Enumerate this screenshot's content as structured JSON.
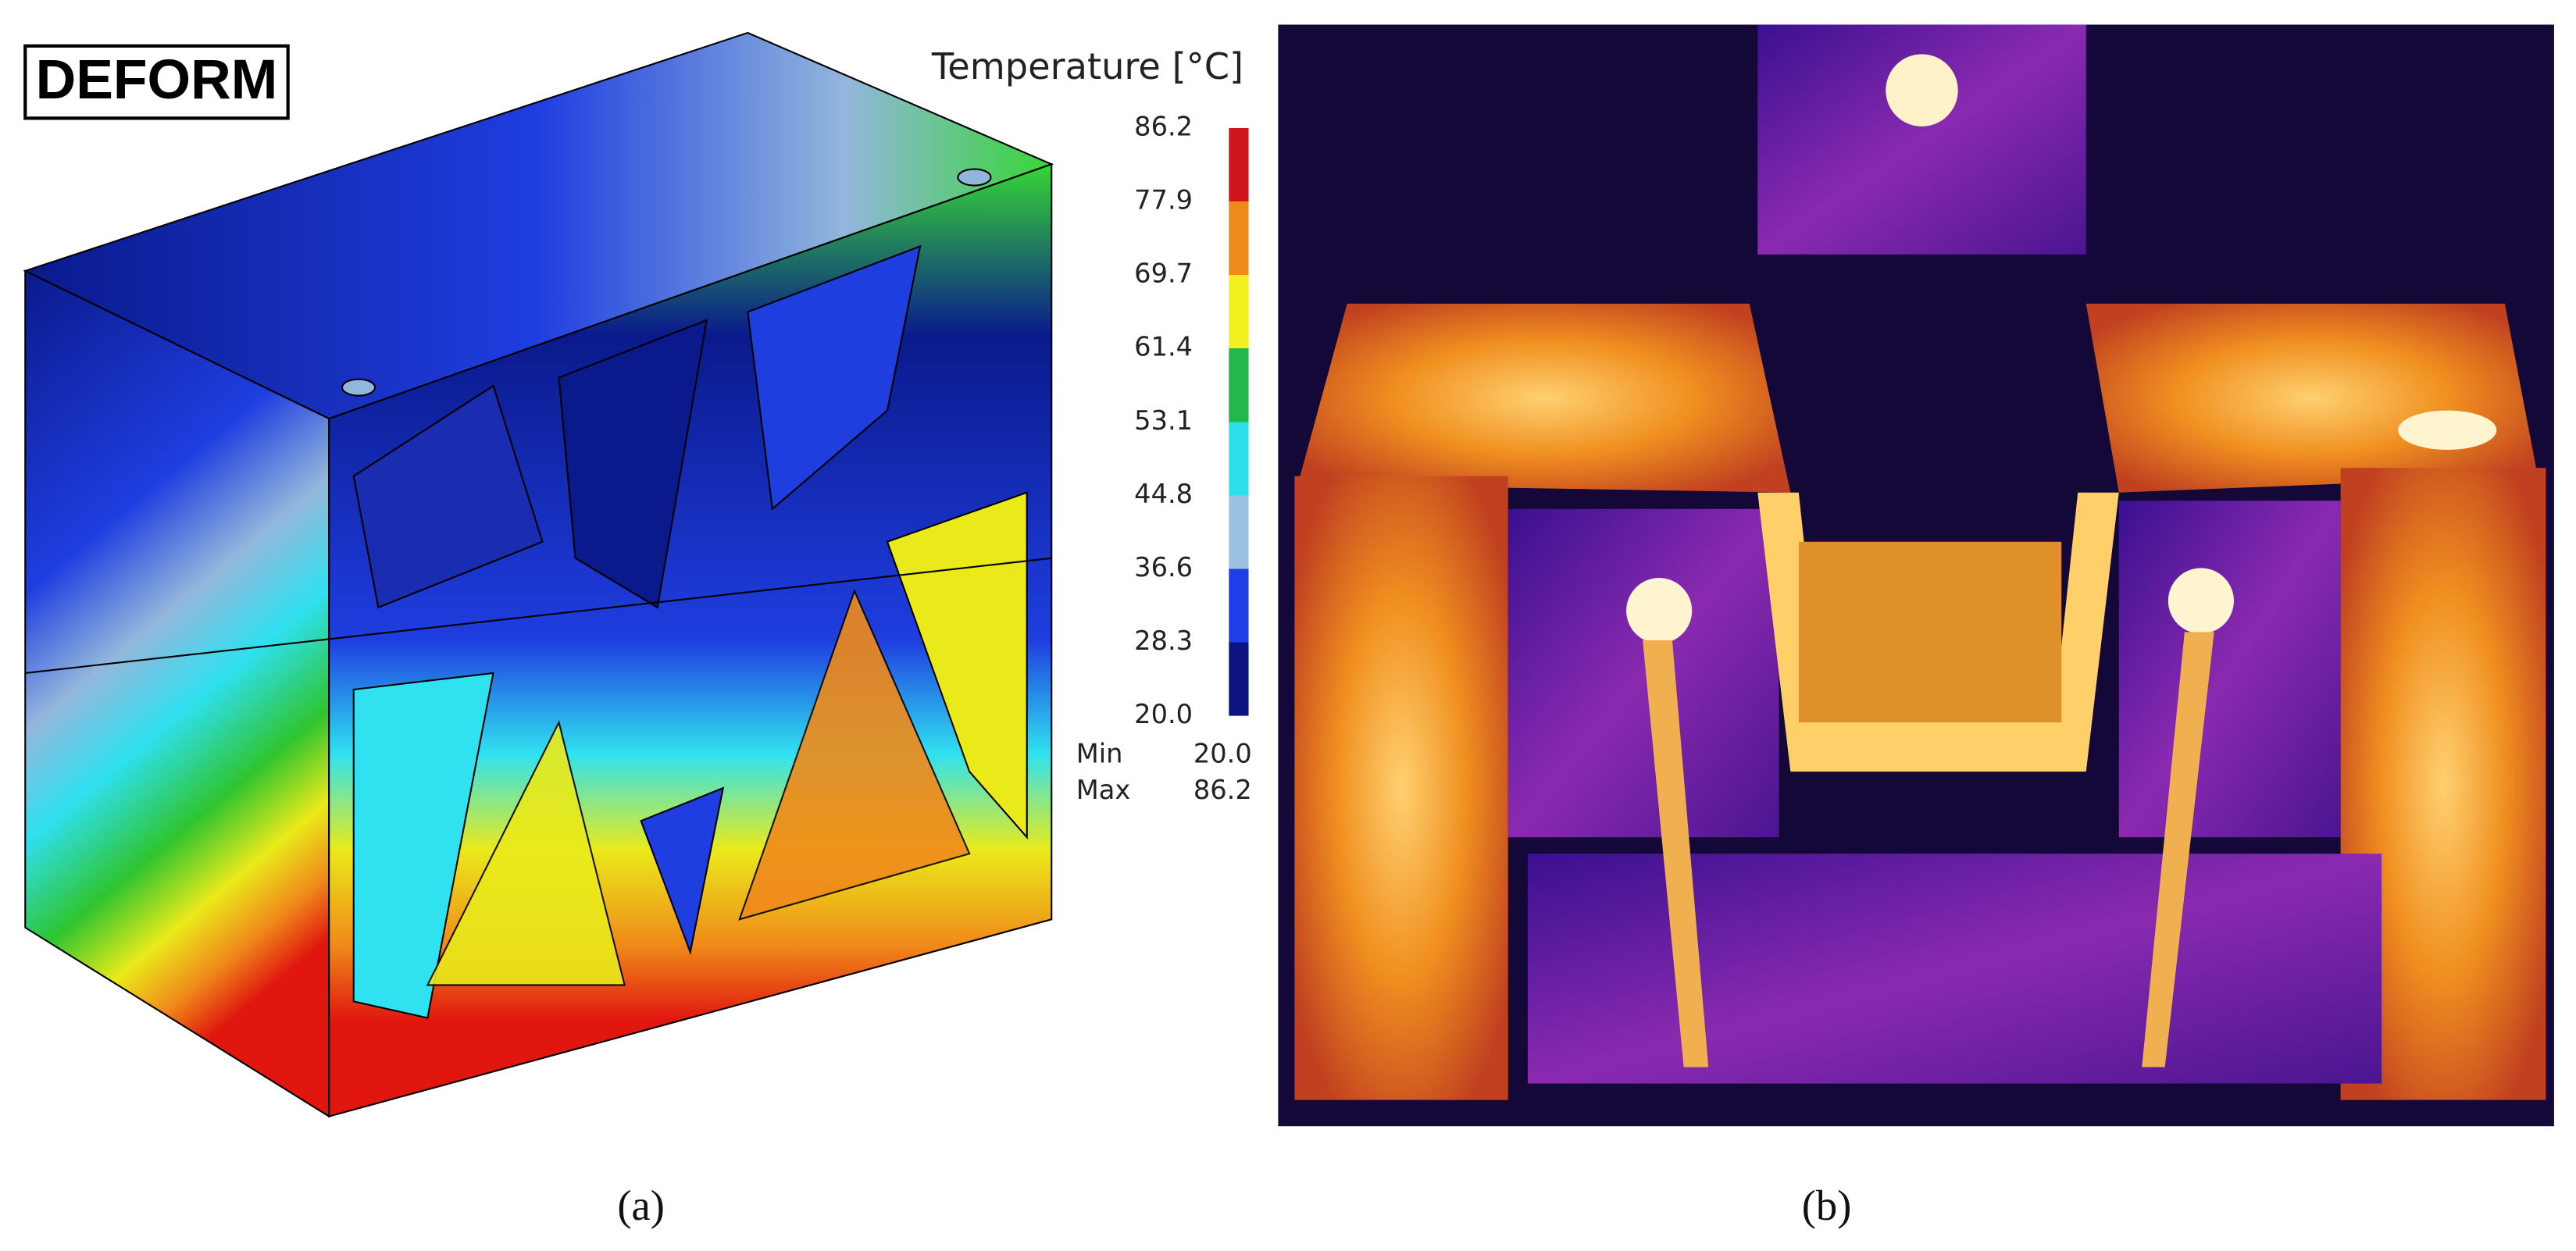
{
  "panel_a": {
    "logo": "DEFORM",
    "legend": {
      "title": "Temperature [°C]",
      "ticks": [
        "86.2",
        "77.9",
        "69.7",
        "61.4",
        "53.1",
        "44.8",
        "36.6",
        "28.3",
        "20.0"
      ],
      "min_label": "Min",
      "min_value": "20.0",
      "max_label": "Max",
      "max_value": "86.2"
    },
    "caption": "(a)"
  },
  "panel_b": {
    "caption": "(b)"
  }
}
